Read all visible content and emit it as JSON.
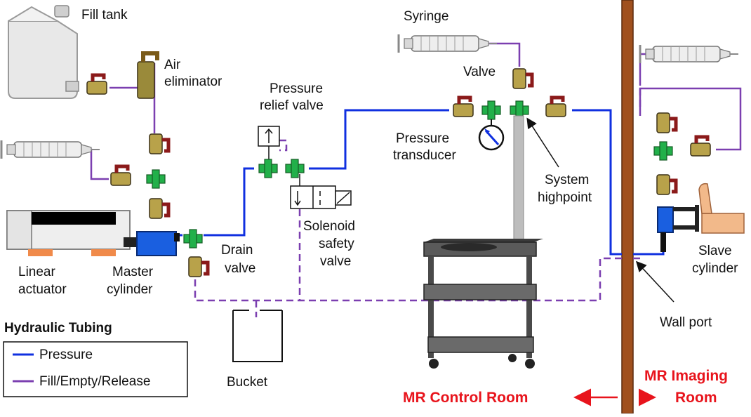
{
  "labels": {
    "fill_tank": "Fill tank",
    "air_eliminator_1": "Air",
    "air_eliminator_2": "eliminator",
    "pressure_relief_1": "Pressure",
    "pressure_relief_2": "relief valve",
    "syringe": "Syringe",
    "valve": "Valve",
    "pressure_transducer_1": "Pressure",
    "pressure_transducer_2": "transducer",
    "system_highpoint_1": "System",
    "system_highpoint_2": "highpoint",
    "solenoid_1": "Solenoid",
    "solenoid_2": "safety",
    "solenoid_3": "valve",
    "drain_valve_1": "Drain",
    "drain_valve_2": "valve",
    "linear_actuator_1": "Linear",
    "linear_actuator_2": "actuator",
    "master_cylinder_1": "Master",
    "master_cylinder_2": "cylinder",
    "slave_cylinder_1": "Slave",
    "slave_cylinder_2": "cylinder",
    "wall_port": "Wall port",
    "bucket": "Bucket"
  },
  "legend": {
    "title": "Hydraulic Tubing",
    "items": [
      {
        "label": "Pressure",
        "color": "#1030e0",
        "style": "solid"
      },
      {
        "label": "Fill/Empty/Release",
        "color": "#7b3fb0",
        "style": "solid"
      }
    ]
  },
  "rooms": {
    "control_room": "MR Control Room",
    "imaging_room_1": "MR Imaging",
    "imaging_room_2": "Room"
  },
  "colors": {
    "pressure_line": "#1030e0",
    "fill_line": "#7b3fb0",
    "valve_body": "#b8a24a",
    "valve_handle": "#8b1a1a",
    "tee_fitting": "#22b04a",
    "wall": "#a0501e",
    "room_label": "#e8141c",
    "master_cylinder": "#1a5fe0",
    "forearm": "#f2b98a"
  }
}
